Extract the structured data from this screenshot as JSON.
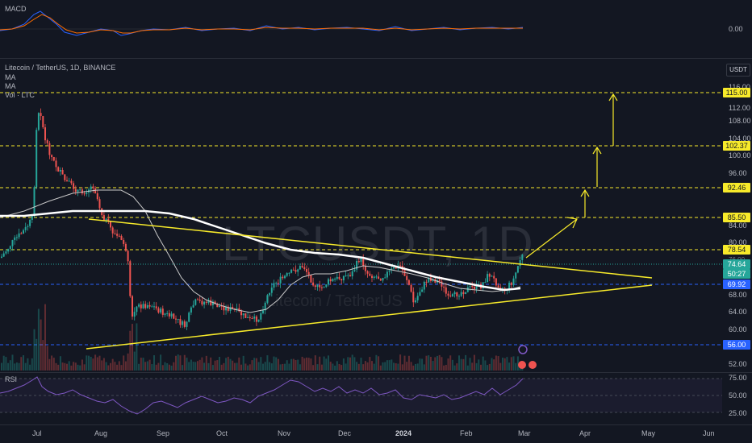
{
  "indicators": {
    "macd_label": "MACD",
    "macd_zero": "0.00",
    "rsi_label": "RSI",
    "legend_title": "Litecoin / TetherUS, 1D, BINANCE",
    "legend_ma1": "MA",
    "legend_ma2": "MA",
    "legend_vol": "Vol · LTC"
  },
  "watermark": {
    "symbol": "LTCUSDT, 1D",
    "name": "Litecoin / TetherUS"
  },
  "currency_button": "USDT",
  "price_axis": [
    "116.00",
    "112.00",
    "108.00",
    "104.00",
    "100.00",
    "96.00",
    "84.00",
    "80.00",
    "76.00",
    "68.00",
    "64.00",
    "60.00",
    "52.00"
  ],
  "price_tags": {
    "p115": "115.00",
    "p10237": "102.37",
    "p9246": "92.46",
    "p8550": "85.50",
    "p7854": "78.54",
    "p7464": "74.64",
    "p5027": "50:27",
    "p6992": "69.92",
    "p5600": "56.00"
  },
  "rsi_axis": [
    "75.00",
    "50.00",
    "25.00"
  ],
  "time_axis": [
    "Jul",
    "Aug",
    "Sep",
    "Oct",
    "Nov",
    "Dec",
    "2024",
    "Feb",
    "Mar",
    "Apr",
    "May",
    "Jun"
  ],
  "colors": {
    "background": "#131722",
    "bull": "#26a69a",
    "bear": "#ef5350",
    "annotation": "#f7ea2a",
    "ma200": "#ffffff",
    "rsi": "#7e57c2",
    "current_price": "#26a69a",
    "blue_level": "#2962ff"
  },
  "chart_data": {
    "type": "candlestick",
    "symbol": "LTCUSDT",
    "timeframe": "1D",
    "ylim": [
      50,
      117
    ],
    "close_last": 74.64,
    "horizontal_levels": [
      115.0,
      102.37,
      92.46,
      85.5,
      78.54,
      69.92,
      56.0
    ],
    "triangle_upper": [
      [
        "Aug",
        85.5
      ],
      [
        "May",
        70.8
      ]
    ],
    "triangle_lower": [
      [
        "Jul",
        55.5
      ],
      [
        "May",
        69.0
      ]
    ]
  }
}
